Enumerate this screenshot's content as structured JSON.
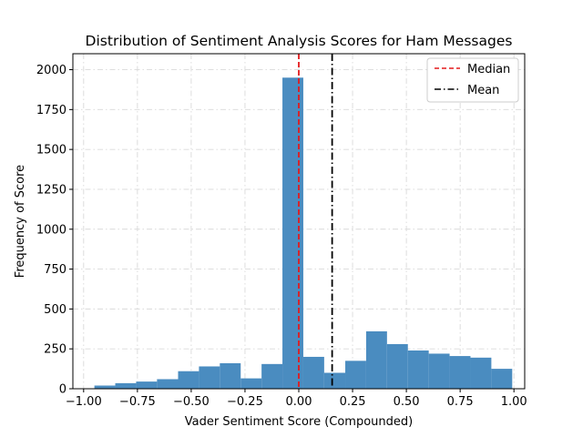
{
  "chart_data": {
    "type": "bar",
    "title": "Distribution of Sentiment Analysis Scores for Ham Messages",
    "xlabel": "Vader Sentiment Score (Compounded)",
    "ylabel": "Frequency of Score",
    "xlim": [
      -1.05,
      1.05
    ],
    "ylim": [
      0,
      2100
    ],
    "xticks": [
      -1.0,
      -0.75,
      -0.5,
      -0.25,
      0.0,
      0.25,
      0.5,
      0.75,
      1.0
    ],
    "xtick_labels": [
      "−1.00",
      "−0.75",
      "−0.50",
      "−0.25",
      "0.00",
      "0.25",
      "0.50",
      "0.75",
      "1.00"
    ],
    "yticks": [
      0,
      250,
      500,
      750,
      1000,
      1250,
      1500,
      1750,
      2000
    ],
    "ytick_labels": [
      "0",
      "250",
      "500",
      "750",
      "1000",
      "1250",
      "1500",
      "1750",
      "2000"
    ],
    "grid": true,
    "bar_color": "#4a8cc0",
    "bins": [
      {
        "x0": -0.95,
        "x1": -0.853,
        "value": 20
      },
      {
        "x0": -0.853,
        "x1": -0.756,
        "value": 35
      },
      {
        "x0": -0.756,
        "x1": -0.659,
        "value": 45
      },
      {
        "x0": -0.659,
        "x1": -0.561,
        "value": 60
      },
      {
        "x0": -0.561,
        "x1": -0.464,
        "value": 110
      },
      {
        "x0": -0.464,
        "x1": -0.367,
        "value": 140
      },
      {
        "x0": -0.367,
        "x1": -0.27,
        "value": 160
      },
      {
        "x0": -0.27,
        "x1": -0.173,
        "value": 65
      },
      {
        "x0": -0.173,
        "x1": -0.076,
        "value": 155
      },
      {
        "x0": -0.076,
        "x1": 0.021,
        "value": 1950
      },
      {
        "x0": 0.021,
        "x1": 0.118,
        "value": 200
      },
      {
        "x0": 0.118,
        "x1": 0.216,
        "value": 100
      },
      {
        "x0": 0.216,
        "x1": 0.313,
        "value": 175
      },
      {
        "x0": 0.313,
        "x1": 0.41,
        "value": 360
      },
      {
        "x0": 0.41,
        "x1": 0.507,
        "value": 280
      },
      {
        "x0": 0.507,
        "x1": 0.604,
        "value": 240
      },
      {
        "x0": 0.604,
        "x1": 0.701,
        "value": 220
      },
      {
        "x0": 0.701,
        "x1": 0.798,
        "value": 205
      },
      {
        "x0": 0.798,
        "x1": 0.895,
        "value": 195
      },
      {
        "x0": 0.895,
        "x1": 0.992,
        "value": 125
      }
    ],
    "lines": [
      {
        "name": "Median",
        "x": 0.0,
        "color": "#e41a1c",
        "style": "dashed"
      },
      {
        "name": "Mean",
        "x": 0.155,
        "color": "#000000",
        "style": "dashdot"
      }
    ],
    "legend": {
      "placement": "top-right",
      "entries": [
        "Median",
        "Mean"
      ]
    }
  }
}
